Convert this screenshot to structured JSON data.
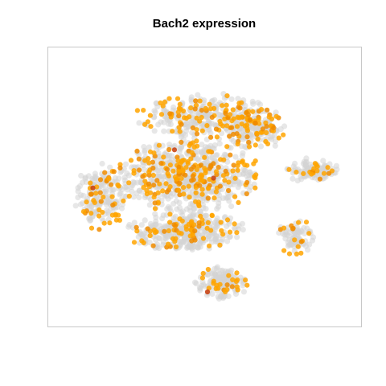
{
  "chart_data": {
    "type": "scatter",
    "title": "Bach2 expression",
    "xlabel": "",
    "ylabel": "",
    "axes_shown": false,
    "grid": false,
    "legend": "none",
    "colors": {
      "background_cells": "#d3d3d3",
      "low_expression": "#ffa500",
      "mid_expression": "#f08c00",
      "high_expression": "#c83c0a",
      "panel_border": "#c8c8c8"
    },
    "xlim": [
      0,
      1
    ],
    "ylim": [
      0,
      1
    ],
    "clusters": [
      {
        "label": "top",
        "cx": 0.5,
        "cy": 0.77,
        "rx": 0.24,
        "ry": 0.09,
        "n_background": 260,
        "n_expressing": 95
      },
      {
        "label": "upper-right",
        "cx": 0.67,
        "cy": 0.72,
        "rx": 0.1,
        "ry": 0.08,
        "n_background": 110,
        "n_expressing": 50
      },
      {
        "label": "center",
        "cx": 0.44,
        "cy": 0.54,
        "rx": 0.24,
        "ry": 0.14,
        "n_background": 520,
        "n_expressing": 190
      },
      {
        "label": "left",
        "cx": 0.14,
        "cy": 0.46,
        "rx": 0.09,
        "ry": 0.13,
        "n_background": 150,
        "n_expressing": 45
      },
      {
        "label": "lower-center",
        "cx": 0.43,
        "cy": 0.32,
        "rx": 0.2,
        "ry": 0.08,
        "n_background": 300,
        "n_expressing": 70
      },
      {
        "label": "bottom",
        "cx": 0.55,
        "cy": 0.12,
        "rx": 0.09,
        "ry": 0.06,
        "n_background": 130,
        "n_expressing": 25
      },
      {
        "label": "right-island",
        "cx": 0.86,
        "cy": 0.56,
        "rx": 0.1,
        "ry": 0.05,
        "n_background": 95,
        "n_expressing": 18
      },
      {
        "label": "right-lower",
        "cx": 0.8,
        "cy": 0.3,
        "rx": 0.06,
        "ry": 0.07,
        "n_background": 70,
        "n_expressing": 16
      }
    ]
  }
}
